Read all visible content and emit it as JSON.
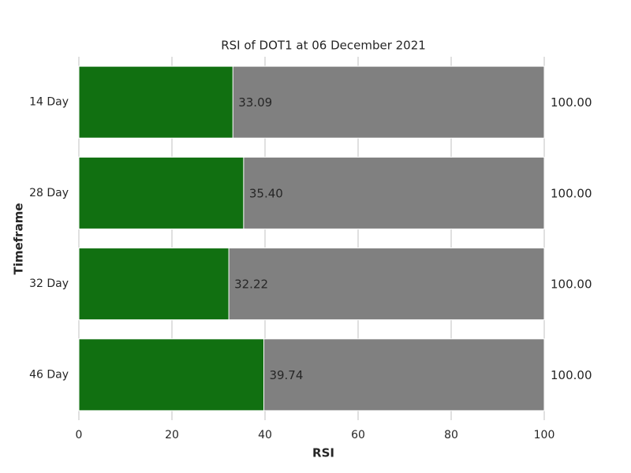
{
  "chart_data": {
    "type": "bar",
    "orientation": "horizontal",
    "overlap": true,
    "title": "RSI of DOT1 at 06 December 2021",
    "xlabel": "RSI",
    "ylabel": "Timeframe",
    "categories": [
      "14 Day",
      "28 Day",
      "32 Day",
      "46 Day"
    ],
    "series": [
      {
        "color": "#808080",
        "values": [
          100,
          100,
          100,
          100
        ],
        "value_labels": [
          "100.00",
          "100.00",
          "100.00",
          "100.00"
        ]
      },
      {
        "color": "#117011",
        "values": [
          33.09,
          35.4,
          32.22,
          39.74
        ],
        "value_labels": [
          "33.09",
          "35.40",
          "32.22",
          "39.74"
        ]
      }
    ],
    "xlim": [
      0,
      100
    ],
    "xticks": [
      0,
      20,
      40,
      60,
      80,
      100
    ],
    "grid": true
  }
}
